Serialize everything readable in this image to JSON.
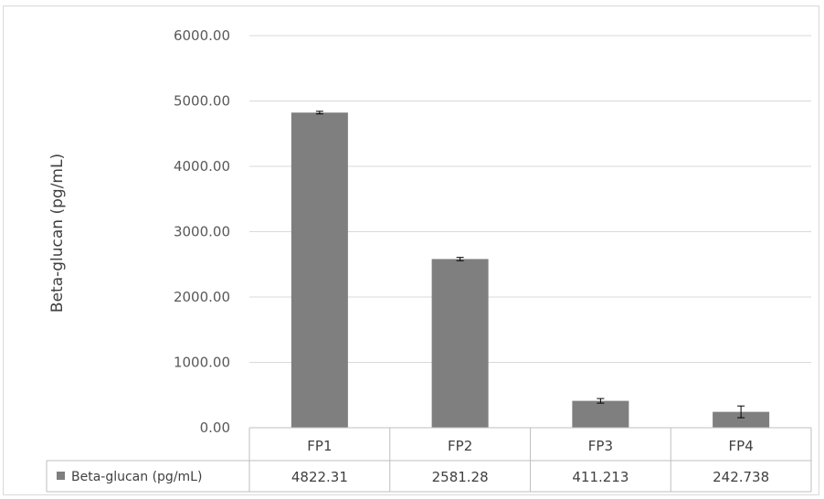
{
  "chart_data": {
    "type": "bar",
    "ylabel": "Beta-glucan (pg/mL)",
    "ylim": [
      0,
      6000
    ],
    "yticks": [
      "0.00",
      "1000.00",
      "2000.00",
      "3000.00",
      "4000.00",
      "5000.00",
      "6000.00"
    ],
    "categories": [
      "FP1",
      "FP2",
      "FP3",
      "FP4"
    ],
    "series": [
      {
        "name": "Beta-glucan (pg/mL)",
        "values": [
          4822.31,
          2581.28,
          411.213,
          242.738
        ],
        "value_labels": [
          "4822.31",
          "2581.28",
          "411.213",
          "242.738"
        ],
        "error": [
          20,
          25,
          35,
          90
        ],
        "color": "#7f7f7f"
      }
    ],
    "grid": true,
    "legend": "data-table"
  }
}
